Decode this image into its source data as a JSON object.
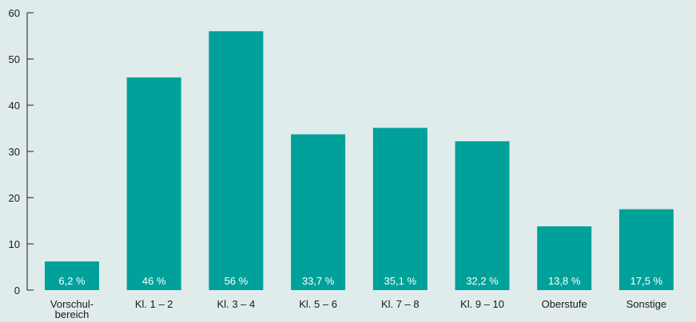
{
  "chart_data": {
    "type": "bar",
    "categories": [
      [
        "Vorschul-",
        "bereich"
      ],
      [
        "Kl. 1 – 2"
      ],
      [
        "Kl. 3 – 4"
      ],
      [
        "Kl. 5 – 6"
      ],
      [
        "Kl. 7 – 8"
      ],
      [
        "Kl. 9 – 10"
      ],
      [
        "Oberstufe"
      ],
      [
        "Sonstige"
      ]
    ],
    "values": [
      6.2,
      46,
      56,
      33.7,
      35.1,
      32.2,
      13.8,
      17.5
    ],
    "data_labels": [
      "6,2 %",
      "46 %",
      "56 %",
      "33,7 %",
      "35,1 %",
      "32,2 %",
      "13,8 %",
      "17,5 %"
    ],
    "ylim": [
      0,
      60
    ],
    "yticks": [
      0,
      10,
      20,
      30,
      40,
      50,
      60
    ],
    "grid": false,
    "colors": {
      "bar": "#00a19a",
      "background": "#dfeceb",
      "axis": "#1a1a1a"
    }
  }
}
